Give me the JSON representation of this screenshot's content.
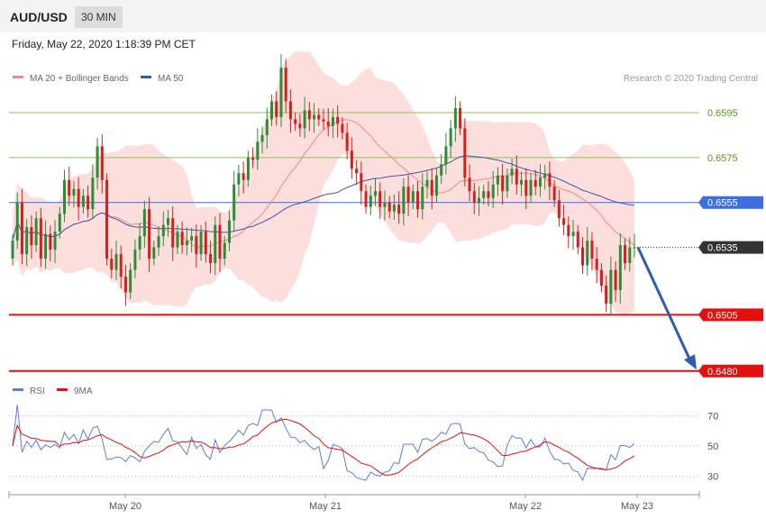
{
  "header": {
    "pair": "AUD/USD",
    "timeframe": "30 MIN",
    "timestamp": "Friday, May 22, 2020 1:18:39 PM CET"
  },
  "colors": {
    "up": "#2e8b3a",
    "down": "#d51f1f",
    "band": "#fbd9d6",
    "ma20": "#f08a80",
    "ma50": "#3a58a8",
    "resistance": "#8dc05a",
    "pivot": "#3b6fe0",
    "support": "#e31010",
    "rsi": "#5b7fd8",
    "rsi_ma": "#e31010",
    "arrow": "#2f5cab"
  },
  "chart_data": [
    {
      "type": "candlestick",
      "legend": [
        {
          "label": "MA 20 + Bollinger Bands",
          "color": "#f08a80"
        },
        {
          "label": "MA 50",
          "color": "#3a58a8"
        }
      ],
      "credit": "Research © 2020 Trading Central",
      "x_ticks": [
        "May 20",
        "May 21",
        "May 22",
        "May 23"
      ],
      "ylim": [
        0.64775,
        0.6605
      ],
      "levels": [
        {
          "label": "0.6595",
          "value": 0.6595,
          "kind": "resistance"
        },
        {
          "label": "0.6575",
          "value": 0.6575,
          "kind": "resistance"
        },
        {
          "label": "0.6555",
          "value": 0.6555,
          "kind": "pivot"
        },
        {
          "label": "0.6535",
          "value": 0.6535,
          "kind": "last"
        },
        {
          "label": "0.6505",
          "value": 0.6505,
          "kind": "support"
        },
        {
          "label": "0.6480",
          "value": 0.648,
          "kind": "support"
        }
      ],
      "closes": [
        0.6538,
        0.6555,
        0.6532,
        0.6544,
        0.6536,
        0.6548,
        0.653,
        0.6541,
        0.6534,
        0.6542,
        0.655,
        0.6565,
        0.6558,
        0.6561,
        0.6553,
        0.6558,
        0.6552,
        0.6566,
        0.658,
        0.6565,
        0.653,
        0.6525,
        0.6532,
        0.6522,
        0.6515,
        0.6525,
        0.6534,
        0.654,
        0.6552,
        0.653,
        0.6535,
        0.654,
        0.6545,
        0.6548,
        0.6535,
        0.6542,
        0.6536,
        0.6538,
        0.654,
        0.6532,
        0.6542,
        0.6532,
        0.6528,
        0.6545,
        0.653,
        0.6537,
        0.6547,
        0.6563,
        0.6568,
        0.6565,
        0.6575,
        0.6574,
        0.6582,
        0.6585,
        0.6592,
        0.66,
        0.6593,
        0.6615,
        0.66,
        0.6592,
        0.659,
        0.6588,
        0.6596,
        0.6592,
        0.6594,
        0.6592,
        0.6591,
        0.6589,
        0.6593,
        0.659,
        0.6586,
        0.6578,
        0.657,
        0.6568,
        0.656,
        0.6553,
        0.6558,
        0.656,
        0.6553,
        0.6555,
        0.6551,
        0.6554,
        0.655,
        0.6562,
        0.6555,
        0.656,
        0.6552,
        0.6562,
        0.6565,
        0.6558,
        0.6567,
        0.6572,
        0.658,
        0.6588,
        0.6597,
        0.6588,
        0.6566,
        0.656,
        0.6555,
        0.6557,
        0.656,
        0.6557,
        0.6563,
        0.6567,
        0.656,
        0.6567,
        0.657,
        0.6563,
        0.6565,
        0.6558,
        0.6565,
        0.6562,
        0.6566,
        0.6568,
        0.6562,
        0.6556,
        0.6548,
        0.6545,
        0.654,
        0.6542,
        0.6535,
        0.6527,
        0.6538,
        0.653,
        0.6525,
        0.6518,
        0.651,
        0.6525,
        0.6516,
        0.6536,
        0.6528,
        0.6535,
        0.6535
      ],
      "rsi": {
        "legend": [
          {
            "label": "RSI",
            "color": "#5b7fd8"
          },
          {
            "label": "9MA",
            "color": "#e31010"
          }
        ],
        "levels": [
          "70",
          "50",
          "30"
        ],
        "ylim": [
          20,
          80
        ]
      }
    }
  ]
}
